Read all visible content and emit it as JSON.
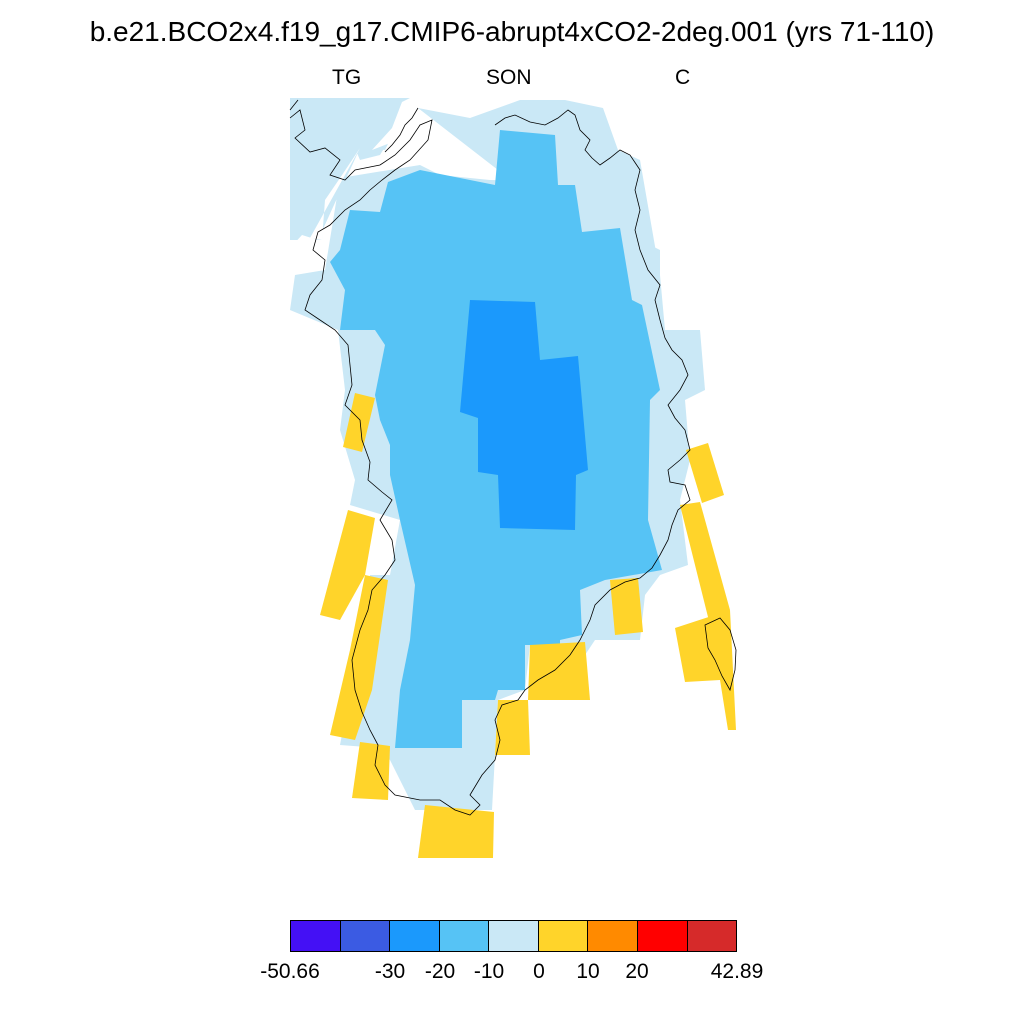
{
  "title": "b.e21.BCO2x4.f19_g17.CMIP6-abrupt4xCO2-2deg.001 (yrs 71-110)",
  "subtitle": {
    "left": "TG",
    "center": "SON",
    "right": "C"
  },
  "colorbar": {
    "colors": [
      "#4410f5",
      "#3b5be3",
      "#1b99fc",
      "#56c3f5",
      "#cae8f6",
      "#ffd42a",
      "#ff8a00",
      "#ff0000",
      "#d62a2a"
    ],
    "tick_labels": [
      "-50.66",
      "-30",
      "-20",
      "-10",
      "0",
      "10",
      "20",
      "42.89"
    ]
  },
  "map_colors": {
    "light_blue": "#cae8f6",
    "mid_blue": "#56c3f5",
    "deep_blue": "#1b99fc",
    "yellow": "#ffd42a",
    "coast": "#000000"
  }
}
